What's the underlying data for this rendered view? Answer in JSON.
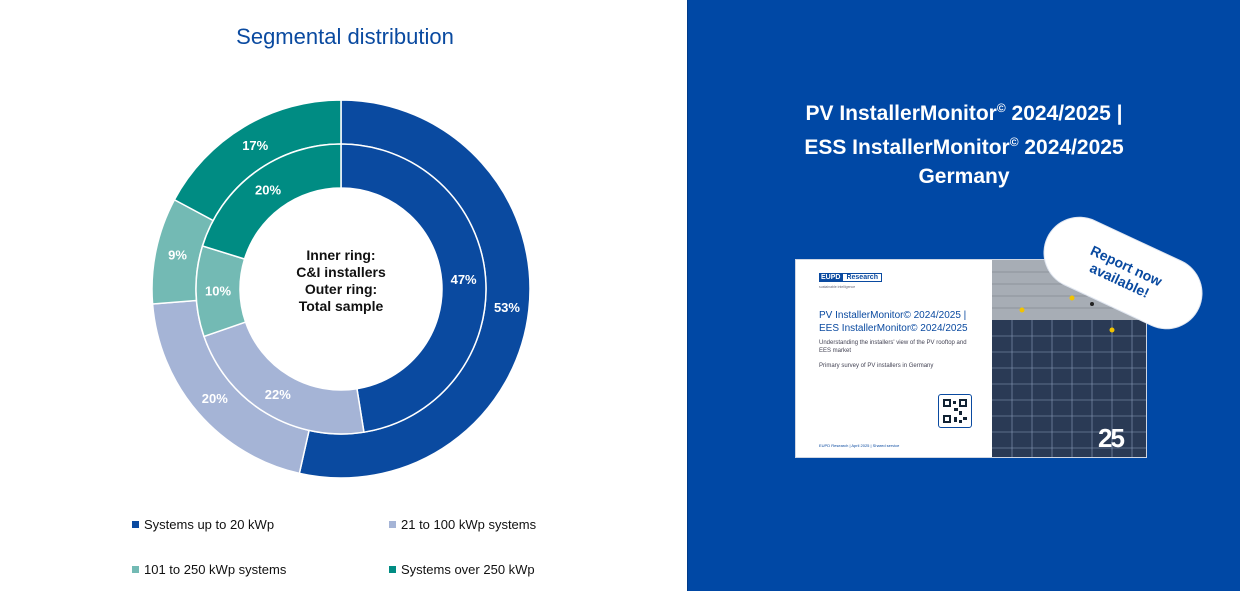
{
  "left": {
    "title": "Segmental distribution"
  },
  "chart_data": {
    "type": "donut",
    "title": "Segmental distribution",
    "center_text": [
      "Inner ring:",
      "C&I installers",
      "Outer ring:",
      "Total sample"
    ],
    "categories": [
      "Systems up to 20 kWp",
      "21 to 100 kWp systems",
      "101 to 250 kWp systems",
      "Systems over 250 kWp"
    ],
    "colors": [
      "#0a4aa0",
      "#a5b4d6",
      "#73bab4",
      "#008c83"
    ],
    "series": [
      {
        "name": "Outer ring: Total sample",
        "values": [
          53,
          20,
          9,
          17
        ],
        "labels": [
          "53%",
          "20%",
          "9%",
          "17%"
        ]
      },
      {
        "name": "Inner ring: C&I installers",
        "values": [
          47,
          22,
          10,
          20
        ],
        "labels": [
          "47%",
          "22%",
          "10%",
          "20%"
        ]
      }
    ]
  },
  "legend": [
    {
      "label": "Systems up to 20 kWp",
      "color": "#0a4aa0"
    },
    {
      "label": "21 to 100 kWp systems",
      "color": "#a5b4d6"
    },
    {
      "label": "101 to 250 kWp systems",
      "color": "#73bab4"
    },
    {
      "label": "Systems over 250 kWp",
      "color": "#008c83"
    }
  ],
  "right": {
    "title_line1_a": "PV InstallerMonitor",
    "title_line1_sup": "©",
    "title_line1_b": " 2024/2025 |",
    "title_line2_a": "ESS InstallerMonitor",
    "title_line2_sup": "©",
    "title_line2_b": " 2024/2025",
    "title_line3": "Germany",
    "badge_line1": "Report now",
    "badge_line2": "available!",
    "report": {
      "logo_a": "EUPD",
      "logo_b": "Research",
      "tagline": "sustainable intelligence",
      "title_line1": "PV InstallerMonitor© 2024/2025 |",
      "title_line2": "EES InstallerMonitor© 2024/2025",
      "subtitle": "Understanding the installers' view of the PV rooftop and EES market",
      "subtitle2": "Primary survey of PV installers in Germany",
      "footer": "EUPD Research | April 2025 | Shared service",
      "badge_25": "25"
    }
  },
  "colors": {
    "brand_blue": "#0048a5"
  }
}
